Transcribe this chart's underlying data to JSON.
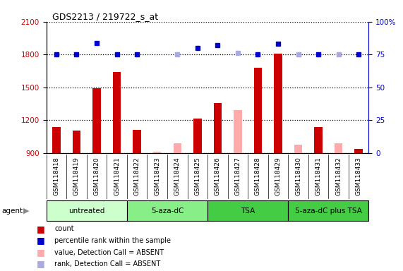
{
  "title": "GDS2213 / 219722_s_at",
  "samples": [
    "GSM118418",
    "GSM118419",
    "GSM118420",
    "GSM118421",
    "GSM118422",
    "GSM118423",
    "GSM118424",
    "GSM118425",
    "GSM118426",
    "GSM118427",
    "GSM118428",
    "GSM118429",
    "GSM118430",
    "GSM118431",
    "GSM118432",
    "GSM118433"
  ],
  "count_present": [
    1135,
    1105,
    1490,
    1640,
    1115,
    null,
    null,
    1215,
    1360,
    null,
    1680,
    1810,
    null,
    1135,
    null,
    940
  ],
  "count_absent": [
    null,
    null,
    null,
    null,
    null,
    910,
    990,
    null,
    null,
    1290,
    null,
    null,
    975,
    null,
    990,
    null
  ],
  "rank_present": [
    75,
    75,
    84,
    75,
    75,
    null,
    null,
    80,
    82,
    null,
    75,
    83,
    null,
    75,
    null,
    75
  ],
  "rank_absent_dark": [
    null,
    null,
    null,
    null,
    null,
    null,
    null,
    null,
    null,
    76,
    null,
    null,
    null,
    null,
    null,
    null
  ],
  "rank_absent_light": [
    null,
    null,
    null,
    null,
    null,
    null,
    75,
    null,
    null,
    null,
    null,
    null,
    75,
    null,
    75,
    null
  ],
  "ylim_left": [
    900,
    2100
  ],
  "ylim_right": [
    0,
    100
  ],
  "yticks_left": [
    900,
    1200,
    1500,
    1800,
    2100
  ],
  "yticks_right": [
    0,
    25,
    50,
    75,
    100
  ],
  "groups": [
    {
      "label": "untreated",
      "start": 0,
      "end": 3,
      "color": "#ccffcc"
    },
    {
      "label": "5-aza-dC",
      "start": 4,
      "end": 7,
      "color": "#88ee88"
    },
    {
      "label": "TSA",
      "start": 8,
      "end": 11,
      "color": "#44cc44"
    },
    {
      "label": "5-aza-dC plus TSA",
      "start": 12,
      "end": 15,
      "color": "#44cc44"
    }
  ],
  "bar_width": 0.4,
  "bar_color_red": "#cc0000",
  "bar_color_pink": "#ffaaaa",
  "dot_color_blue": "#0000cc",
  "dot_color_lightblue": "#aaaadd",
  "left_axis_color": "#cc0000",
  "right_axis_color": "#0000cc",
  "plot_bg": "#ffffff",
  "tick_label_bg": "#cccccc",
  "fig_bg": "#ffffff"
}
